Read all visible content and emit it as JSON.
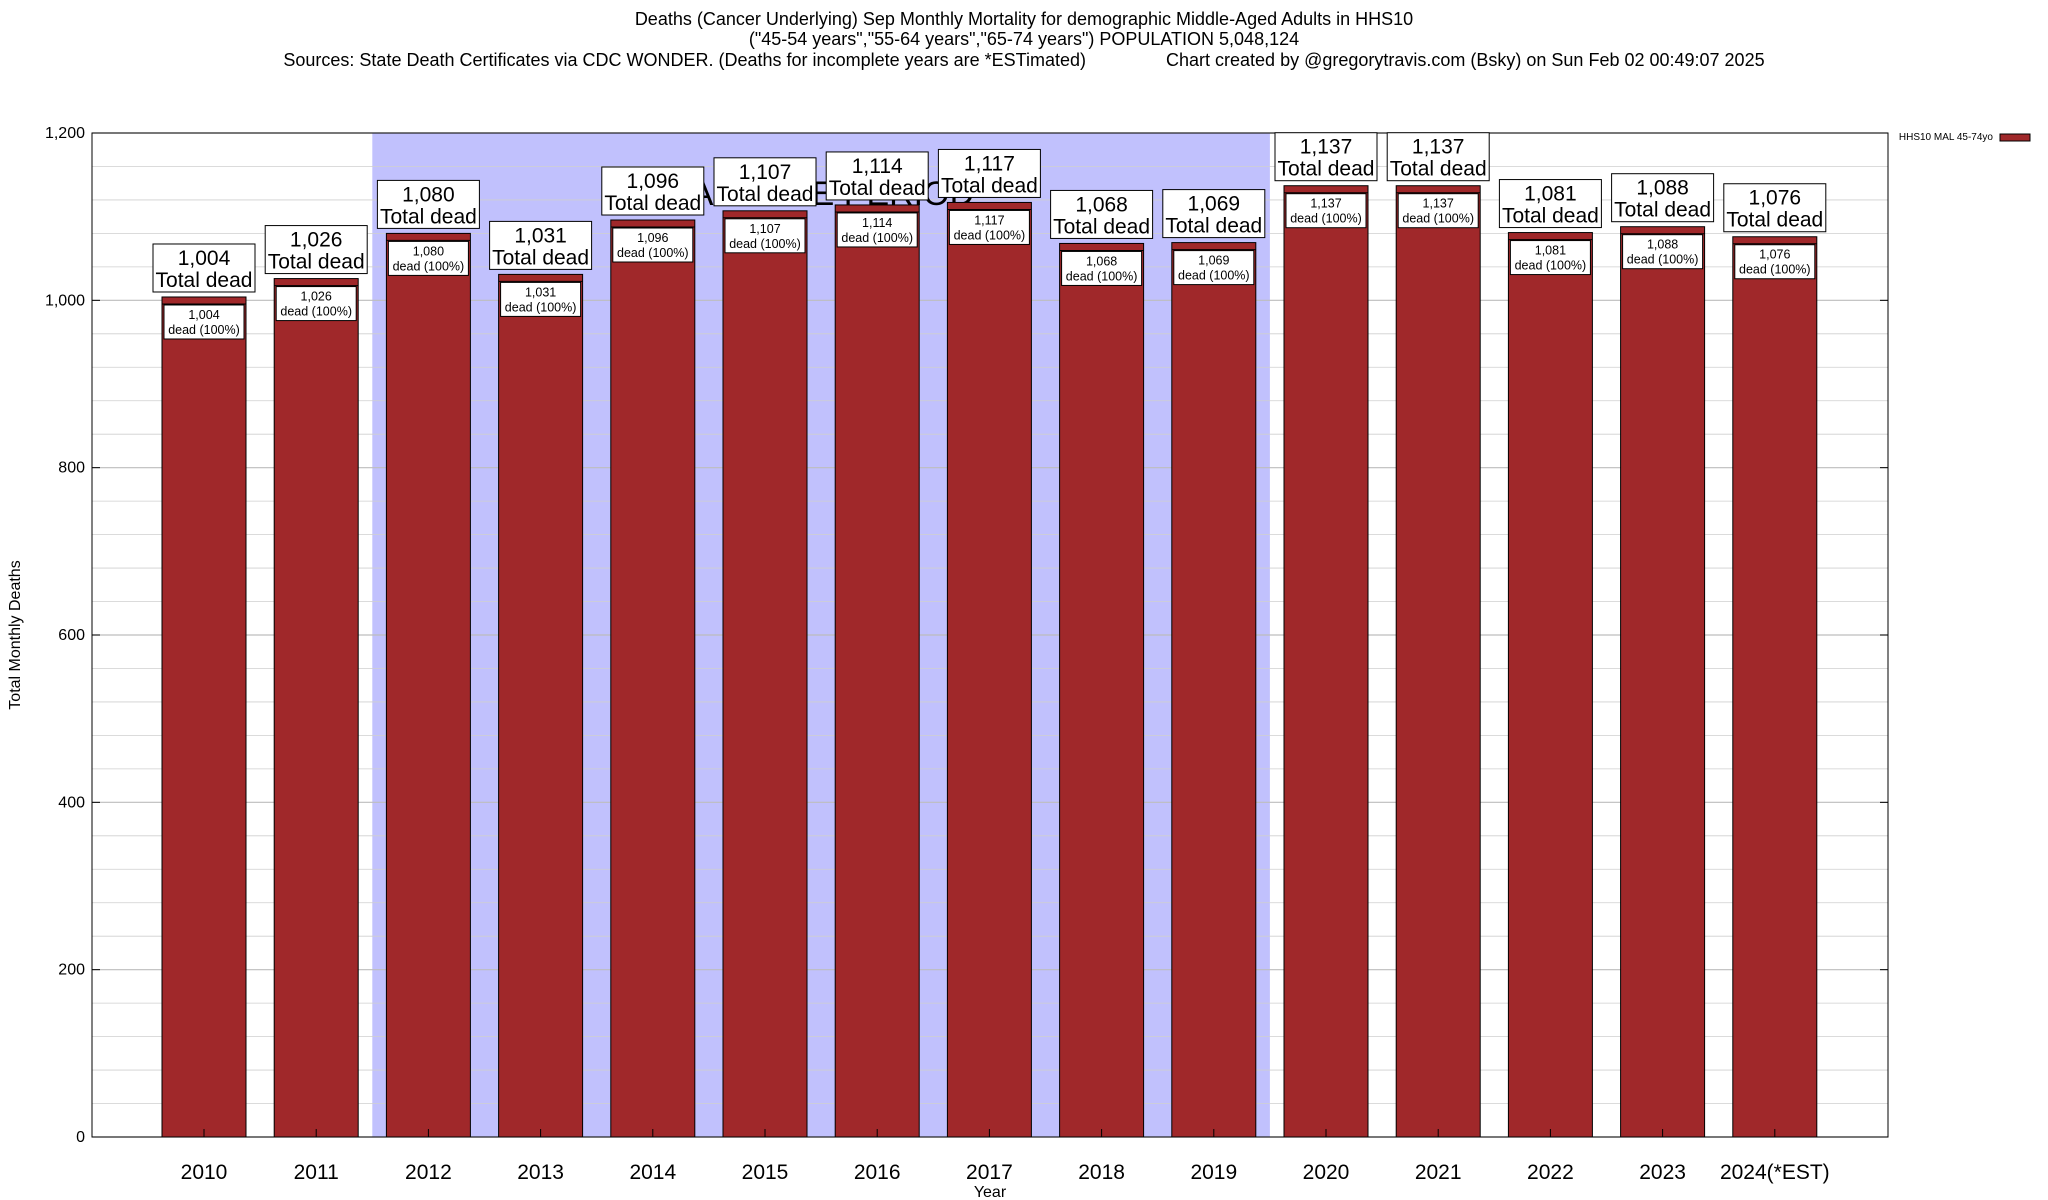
{
  "chart_data": {
    "type": "bar",
    "title_lines": [
      "Deaths (Cancer Underlying) Sep Monthly Mortality for demographic Middle-Aged Adults in HHS10",
      "(\"45-54 years\",\"55-64 years\",\"65-74 years\") POPULATION 5,048,124",
      "Sources: State Death Certificates via CDC WONDER. (Deaths for incomplete years are *ESTimated)                Chart created by @gregorytravis.com (Bsky) on Sun Feb 02 00:49:07 2025"
    ],
    "xlabel": "Year",
    "ylabel": "Total Monthly Deaths",
    "ylim": [
      0,
      1200
    ],
    "yticks": [
      0,
      200,
      400,
      600,
      800,
      1000,
      1200
    ],
    "ytick_labels": [
      "0",
      "200",
      "400",
      "600",
      "800",
      "1,000",
      "1,200"
    ],
    "minor_y_step": 40,
    "grid": true,
    "legend": {
      "placement": "top-right",
      "entries": [
        {
          "name": "HHS10 MAL 45-74yo",
          "color": "#a0282a"
        }
      ]
    },
    "bar_color": "#a0282a",
    "baseline_region": {
      "label": "BASELINE PERIOD",
      "start_category": "2012",
      "end_category": "2019",
      "color": "#c1c1fd"
    },
    "categories": [
      "2010",
      "2011",
      "2012",
      "2013",
      "2014",
      "2015",
      "2016",
      "2017",
      "2018",
      "2019",
      "2020",
      "2021",
      "2022",
      "2023",
      "2024(*EST)"
    ],
    "series": [
      {
        "name": "HHS10 MAL 45-74yo",
        "values": [
          1004,
          1026,
          1080,
          1031,
          1096,
          1107,
          1114,
          1117,
          1068,
          1069,
          1137,
          1137,
          1081,
          1088,
          1076
        ],
        "value_labels": [
          "1,004",
          "1,026",
          "1,080",
          "1,031",
          "1,096",
          "1,107",
          "1,114",
          "1,117",
          "1,068",
          "1,069",
          "1,137",
          "1,137",
          "1,081",
          "1,088",
          "1,076"
        ],
        "inner_labels": [
          "dead (100%)",
          "dead (100%)",
          "dead (100%)",
          "dead (100%)",
          "dead (100%)",
          "dead (100%)",
          "dead (100%)",
          "dead (100%)",
          "dead (100%)",
          "dead (100%)",
          "dead (100%)",
          "dead (100%)",
          "dead (100%)",
          "dead (100%)",
          "dead (100%)"
        ]
      }
    ],
    "total_label": "Total dead"
  }
}
